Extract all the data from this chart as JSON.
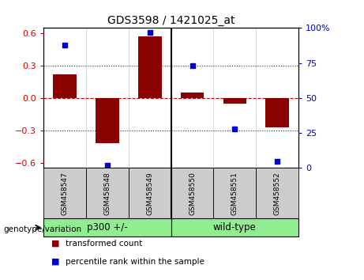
{
  "title": "GDS3598 / 1421025_at",
  "samples": [
    "GSM458547",
    "GSM458548",
    "GSM458549",
    "GSM458550",
    "GSM458551",
    "GSM458552"
  ],
  "red_bars": [
    0.22,
    -0.42,
    0.57,
    0.05,
    -0.05,
    -0.27
  ],
  "blue_dots": [
    88,
    2,
    97,
    73,
    28,
    5
  ],
  "groups": [
    {
      "label": "p300 +/-",
      "start": 0,
      "end": 3,
      "color": "#90ee90"
    },
    {
      "label": "wild-type",
      "start": 3,
      "end": 6,
      "color": "#90ee90"
    }
  ],
  "group_divider": 3,
  "ylim_left": [
    -0.65,
    0.65
  ],
  "ylim_right": [
    0,
    100
  ],
  "yticks_left": [
    -0.6,
    -0.3,
    0,
    0.3,
    0.6
  ],
  "yticks_right": [
    0,
    25,
    50,
    75,
    100
  ],
  "ytick_labels_right": [
    "0",
    "25",
    "50",
    "75",
    "100%"
  ],
  "bar_color": "#8b0000",
  "dot_color": "#0000cd",
  "zero_line_color": "#cc0000",
  "dotted_line_color": "#333333",
  "bg_plot": "#ffffff",
  "bg_label": "#cccccc",
  "bg_group": "#90ee90",
  "legend_red_label": "transformed count",
  "legend_blue_label": "percentile rank within the sample",
  "genotype_label": "genotype/variation",
  "bar_width": 0.55
}
